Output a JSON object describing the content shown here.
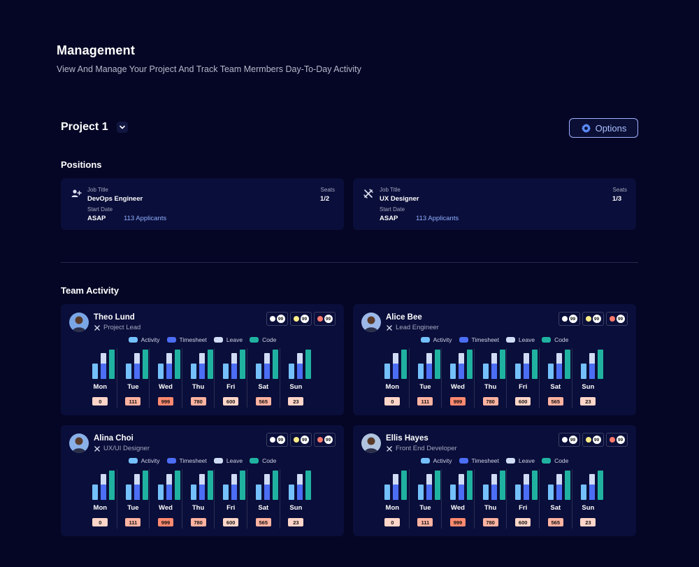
{
  "header": {
    "title": "Management",
    "subtitle": "View And Manage Your Project And Track Team Mermbers Day-To-Day Activity"
  },
  "project": {
    "name": "Project 1",
    "options_label": "Options"
  },
  "positions": {
    "title": "Positions",
    "labels": {
      "job_title": "Job Title",
      "seats": "Seats",
      "start_date": "Start Date"
    },
    "items": [
      {
        "icon": "user-plus-icon",
        "job_title": "DevOps Engineer",
        "seats": "1/2",
        "start_date": "ASAP",
        "applicants": "113 Applicants"
      },
      {
        "icon": "design-tools-icon",
        "job_title": "UX Designer",
        "seats": "1/3",
        "start_date": "ASAP",
        "applicants": "113 Applicants"
      }
    ]
  },
  "team": {
    "title": "Team Activity",
    "legend": [
      {
        "label": "Activity",
        "color": "#74c0fc"
      },
      {
        "label": "Timesheet",
        "color": "#4c6ef5"
      },
      {
        "label": "Leave",
        "color": "#d0dcf5"
      },
      {
        "label": "Code",
        "color": "#20b2a0"
      }
    ],
    "stat_colors": [
      "#ffffff",
      "#ffee88",
      "#ff7a6b"
    ],
    "days": [
      "Mon",
      "Tue",
      "Wed",
      "Thu",
      "Fri",
      "Sat",
      "Sun"
    ],
    "day_values": [
      "0",
      "111",
      "999",
      "780",
      "600",
      "565",
      "23"
    ],
    "day_value_colors": [
      "#ffd6c9",
      "#ffb3a1",
      "#ff8a70",
      "#ffb3a1",
      "#ffd6c9",
      "#ffb3a1",
      "#ffd6c9"
    ],
    "members": [
      {
        "name": "Theo Lund",
        "role": "Project Lead",
        "stats": [
          "99",
          "99",
          "99"
        ]
      },
      {
        "name": "Alice Bee",
        "role": "Lead Engineer",
        "stats": [
          "99",
          "99",
          "99"
        ]
      },
      {
        "name": "Alina Choi",
        "role": "UX/UI Designer",
        "stats": [
          "99",
          "99",
          "99"
        ]
      },
      {
        "name": "Ellis Hayes",
        "role": "Front End Developer",
        "stats": [
          "99",
          "99",
          "99"
        ]
      }
    ]
  }
}
